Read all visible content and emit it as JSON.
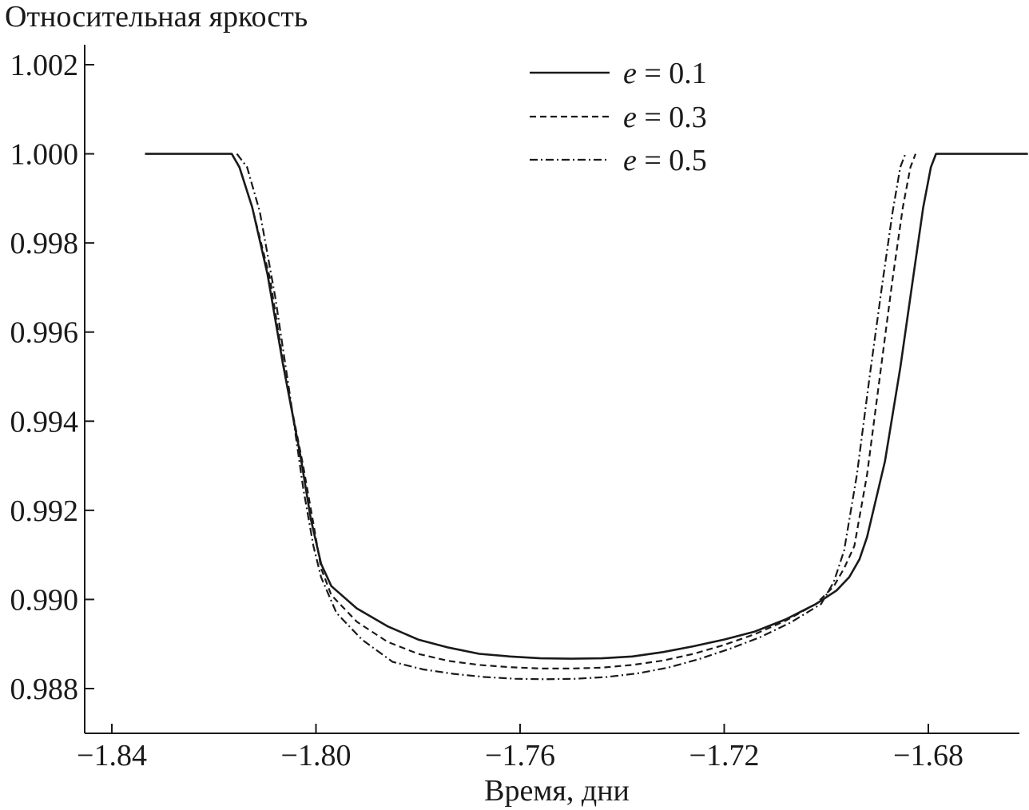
{
  "chart_data": {
    "type": "line",
    "title": "",
    "ylabel": "Относительная яркость",
    "xlabel": "Время, дни",
    "xlim": [
      -1.84,
      -1.66
    ],
    "ylim": [
      0.9872,
      1.0025
    ],
    "xticks": [
      -1.84,
      -1.8,
      -1.76,
      -1.72,
      -1.68
    ],
    "xtick_labels": [
      "−1.84",
      "−1.80",
      "−1.76",
      "−1.72",
      "−1.68"
    ],
    "yticks": [
      0.988,
      0.99,
      0.992,
      0.994,
      0.996,
      0.998,
      1.0,
      1.002
    ],
    "ytick_labels": [
      "0.988",
      "0.990",
      "0.992",
      "0.994",
      "0.996",
      "0.998",
      "1.000",
      "1.002"
    ],
    "grid": false,
    "legend_position": "top-center",
    "series": [
      {
        "name_var": "e",
        "name_eq": " = 0.1",
        "style": "solid",
        "x": [
          -1.8335,
          -1.8165,
          -1.815,
          -1.8125,
          -1.8095,
          -1.8065,
          -1.803,
          -1.801,
          -1.799,
          -1.797,
          -1.792,
          -1.786,
          -1.78,
          -1.774,
          -1.768,
          -1.762,
          -1.756,
          -1.75,
          -1.744,
          -1.738,
          -1.732,
          -1.726,
          -1.72,
          -1.714,
          -1.708,
          -1.702,
          -1.698,
          -1.6955,
          -1.6935,
          -1.692,
          -1.6885,
          -1.6855,
          -1.683,
          -1.681,
          -1.6795,
          -1.6785,
          -1.6605
        ],
        "y": [
          1.0,
          1.0,
          0.9997,
          0.9988,
          0.9973,
          0.9953,
          0.9932,
          0.9918,
          0.9908,
          0.9903,
          0.9898,
          0.9894,
          0.9891,
          0.98892,
          0.98878,
          0.98872,
          0.98868,
          0.98867,
          0.98868,
          0.98872,
          0.98882,
          0.98895,
          0.9891,
          0.98928,
          0.98955,
          0.9899,
          0.9902,
          0.9905,
          0.9909,
          0.9914,
          0.9931,
          0.9952,
          0.9972,
          0.9988,
          0.9997,
          1.0,
          1.0
        ]
      },
      {
        "name_var": "e",
        "name_eq": " = 0.3",
        "style": "dashed",
        "x": [
          -1.8165,
          -1.815,
          -1.8125,
          -1.809,
          -1.806,
          -1.8025,
          -1.8005,
          -1.799,
          -1.797,
          -1.792,
          -1.786,
          -1.78,
          -1.774,
          -1.768,
          -1.762,
          -1.756,
          -1.75,
          -1.744,
          -1.738,
          -1.732,
          -1.726,
          -1.72,
          -1.714,
          -1.708,
          -1.702,
          -1.6985,
          -1.6965,
          -1.6945,
          -1.692,
          -1.6895,
          -1.687,
          -1.685,
          -1.6835,
          -1.6825
        ],
        "y": [
          1.0,
          0.9997,
          0.9988,
          0.9972,
          0.995,
          0.993,
          0.9917,
          0.9907,
          0.9901,
          0.9895,
          0.98905,
          0.98878,
          0.98862,
          0.98853,
          0.98848,
          0.98845,
          0.98845,
          0.98847,
          0.98853,
          0.98863,
          0.98878,
          0.98898,
          0.98922,
          0.98952,
          0.9899,
          0.9903,
          0.9907,
          0.9912,
          0.9928,
          0.995,
          0.9972,
          0.9988,
          0.9997,
          1.0
        ]
      },
      {
        "name_var": "e",
        "name_eq": " = 0.5",
        "style": "dashdot",
        "x": [
          -1.8155,
          -1.8135,
          -1.811,
          -1.808,
          -1.805,
          -1.8025,
          -1.8005,
          -1.799,
          -1.796,
          -1.791,
          -1.785,
          -1.779,
          -1.773,
          -1.767,
          -1.761,
          -1.755,
          -1.749,
          -1.743,
          -1.737,
          -1.731,
          -1.725,
          -1.719,
          -1.713,
          -1.707,
          -1.701,
          -1.6985,
          -1.6965,
          -1.694,
          -1.6915,
          -1.689,
          -1.687,
          -1.6855,
          -1.6845
        ],
        "y": [
          1.0,
          0.9997,
          0.9987,
          0.9968,
          0.9945,
          0.9925,
          0.9912,
          0.9905,
          0.9897,
          0.9891,
          0.9886,
          0.98843,
          0.98833,
          0.98826,
          0.98822,
          0.98821,
          0.98822,
          0.98826,
          0.98834,
          0.98847,
          0.98866,
          0.98889,
          0.98915,
          0.98948,
          0.9899,
          0.9904,
          0.9911,
          0.9928,
          0.995,
          0.9971,
          0.9987,
          0.9997,
          1.0
        ]
      }
    ]
  }
}
